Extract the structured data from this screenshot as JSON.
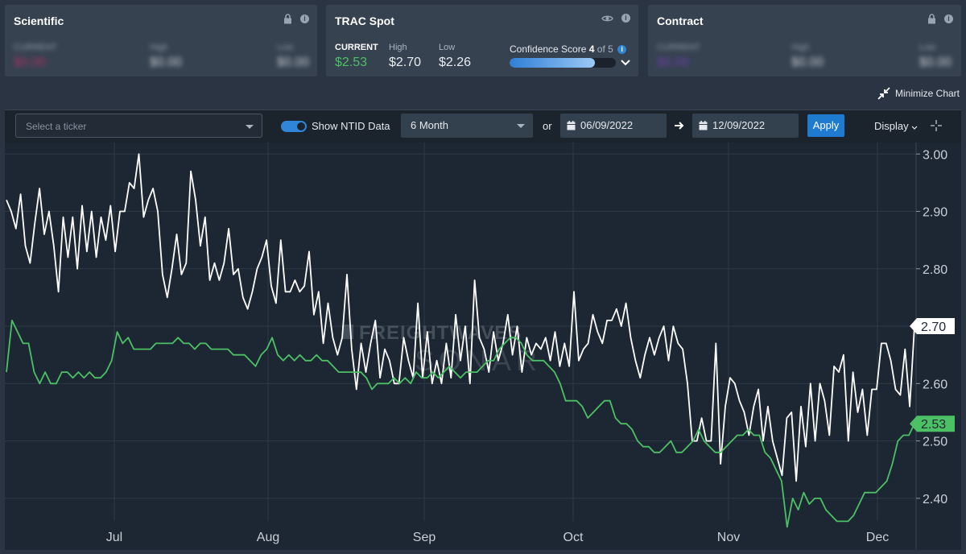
{
  "cards": {
    "scientific": {
      "title": "Scientific",
      "current_label": "CURRENT",
      "current_value": "$0.00",
      "high_label": "High",
      "high_value": "$0.00",
      "low_label": "Low",
      "low_value": "$0.00"
    },
    "trac": {
      "title": "TRAC Spot",
      "current_label": "CURRENT",
      "current_value": "$2.53",
      "high_label": "High",
      "high_value": "$2.70",
      "low_label": "Low",
      "low_value": "$2.26",
      "confidence_label": "Confidence Score",
      "confidence_score": "4",
      "confidence_of": "of 5",
      "confidence_fraction": 0.8
    },
    "contract": {
      "title": "Contract",
      "current_label": "CURRENT",
      "current_value": "$0.00",
      "high_label": "High",
      "high_value": "$0.00",
      "low_label": "Low",
      "low_value": "$0.00"
    }
  },
  "minimize_label": "Minimize Chart",
  "toolbar": {
    "ticker_placeholder": "Select a ticker",
    "ntid_label": "Show NTID Data",
    "range": "6 Month",
    "or_label": "or",
    "start_date": "06/09/2022",
    "end_date": "12/09/2022",
    "apply_label": "Apply",
    "display_label": "Display"
  },
  "colors": {
    "white_series": "#ffffff",
    "green_series": "#4cc064",
    "accent": "#1f7bd0"
  },
  "chart_data": {
    "type": "line",
    "watermark": [
      "FREIGHTWAVES",
      "SONAR"
    ],
    "x_tick_labels": [
      "Jul",
      "Aug",
      "Sep",
      "Oct",
      "Nov",
      "Dec"
    ],
    "y_tick_labels": [
      "3.00",
      "2.90",
      "2.80",
      "2.70",
      "2.60",
      "2.50",
      "2.40"
    ],
    "ylim": [
      2.31,
      3.02
    ],
    "grid": true,
    "last_labels": {
      "white": "2.70",
      "green": "2.53"
    },
    "series": [
      {
        "color": "#ffffff",
        "values": [
          2.92,
          2.9,
          2.87,
          2.93,
          2.84,
          2.81,
          2.88,
          2.94,
          2.86,
          2.9,
          2.84,
          2.76,
          2.89,
          2.82,
          2.89,
          2.8,
          2.91,
          2.83,
          2.9,
          2.82,
          2.89,
          2.85,
          2.91,
          2.83,
          2.9,
          2.9,
          2.95,
          2.94,
          3.0,
          2.89,
          2.92,
          2.94,
          2.9,
          2.79,
          2.75,
          2.8,
          2.86,
          2.79,
          2.81,
          2.97,
          2.92,
          2.84,
          2.89,
          2.78,
          2.81,
          2.78,
          2.81,
          2.87,
          2.79,
          2.8,
          2.75,
          2.73,
          2.76,
          2.8,
          2.82,
          2.85,
          2.77,
          2.74,
          2.85,
          2.76,
          2.76,
          2.78,
          2.76,
          2.77,
          2.83,
          2.72,
          2.76,
          2.67,
          2.74,
          2.68,
          2.65,
          2.68,
          2.79,
          2.66,
          2.59,
          2.67,
          2.62,
          2.67,
          2.71,
          2.61,
          2.66,
          2.64,
          2.6,
          2.6,
          2.68,
          2.64,
          2.61,
          2.74,
          2.61,
          2.69,
          2.6,
          2.64,
          2.6,
          2.67,
          2.61,
          2.72,
          2.64,
          2.7,
          2.6,
          2.78,
          2.68,
          2.66,
          2.62,
          2.69,
          2.64,
          2.67,
          2.72,
          2.65,
          2.7,
          2.62,
          2.68,
          2.65,
          2.67,
          2.66,
          2.68,
          2.64,
          2.69,
          2.63,
          2.67,
          2.63,
          2.76,
          2.64,
          2.66,
          2.67,
          2.72,
          2.69,
          2.67,
          2.71,
          2.71,
          2.73,
          2.7,
          2.74,
          2.68,
          2.64,
          2.61,
          2.65,
          2.68,
          2.65,
          2.68,
          2.7,
          2.64,
          2.7,
          2.67,
          2.66,
          2.6,
          2.5,
          2.5,
          2.54,
          2.5,
          2.5,
          2.67,
          2.46,
          2.56,
          2.61,
          2.6,
          2.57,
          2.55,
          2.51,
          2.56,
          2.59,
          2.5,
          2.56,
          2.5,
          2.47,
          2.44,
          2.54,
          2.55,
          2.43,
          2.56,
          2.49,
          2.6,
          2.5,
          2.6,
          2.57,
          2.51,
          2.63,
          2.62,
          2.65,
          2.5,
          2.62,
          2.55,
          2.59,
          2.51,
          2.59,
          2.59,
          2.67,
          2.67,
          2.64,
          2.59,
          2.58,
          2.66,
          2.56,
          2.7
        ]
      },
      {
        "color": "#4cc064",
        "values": [
          2.62,
          2.71,
          2.69,
          2.67,
          2.67,
          2.62,
          2.6,
          2.62,
          2.6,
          2.6,
          2.62,
          2.62,
          2.61,
          2.62,
          2.61,
          2.62,
          2.61,
          2.61,
          2.62,
          2.64,
          2.69,
          2.67,
          2.68,
          2.66,
          2.66,
          2.66,
          2.66,
          2.67,
          2.67,
          2.67,
          2.67,
          2.68,
          2.67,
          2.67,
          2.66,
          2.67,
          2.67,
          2.66,
          2.66,
          2.66,
          2.66,
          2.65,
          2.65,
          2.65,
          2.64,
          2.63,
          2.65,
          2.66,
          2.68,
          2.65,
          2.64,
          2.65,
          2.64,
          2.65,
          2.64,
          2.64,
          2.65,
          2.64,
          2.64,
          2.63,
          2.62,
          2.62,
          2.62,
          2.62,
          2.62,
          2.61,
          2.59,
          2.6,
          2.6,
          2.6,
          2.61,
          2.6,
          2.61,
          2.6,
          2.62,
          2.61,
          2.61,
          2.62,
          2.61,
          2.62,
          2.63,
          2.62,
          2.61,
          2.62,
          2.62,
          2.62,
          2.63,
          2.64,
          2.64,
          2.66,
          2.67,
          2.68,
          2.68,
          2.67,
          2.65,
          2.64,
          2.64,
          2.64,
          2.63,
          2.62,
          2.6,
          2.57,
          2.57,
          2.57,
          2.56,
          2.54,
          2.55,
          2.56,
          2.57,
          2.57,
          2.54,
          2.53,
          2.53,
          2.52,
          2.5,
          2.49,
          2.49,
          2.48,
          2.48,
          2.49,
          2.5,
          2.48,
          2.48,
          2.49,
          2.5,
          2.52,
          2.5,
          2.49,
          2.48,
          2.48,
          2.49,
          2.5,
          2.51,
          2.51,
          2.52,
          2.51,
          2.51,
          2.48,
          2.47,
          2.45,
          2.43,
          2.35,
          2.4,
          2.38,
          2.41,
          2.39,
          2.4,
          2.4,
          2.38,
          2.37,
          2.36,
          2.36,
          2.36,
          2.37,
          2.39,
          2.41,
          2.41,
          2.41,
          2.42,
          2.43,
          2.46,
          2.5,
          2.51,
          2.51,
          2.53
        ]
      }
    ]
  }
}
